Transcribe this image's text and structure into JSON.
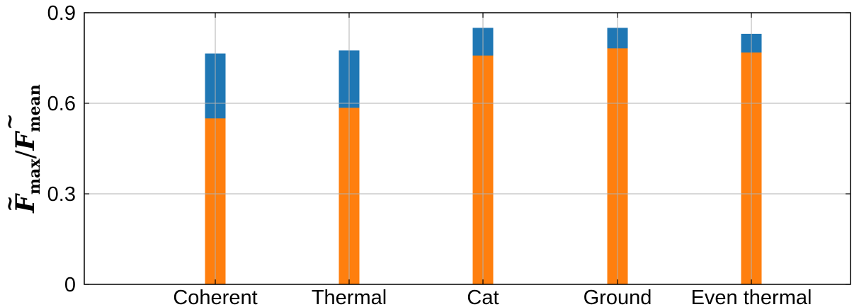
{
  "chart_data": {
    "type": "bar",
    "stacked_overlay": true,
    "categories": [
      "Coherent",
      "Thermal",
      "Cat",
      "Ground",
      "Even thermal"
    ],
    "series": [
      {
        "values": [
          0.765,
          0.775,
          0.85,
          0.85,
          0.83
        ],
        "color": "#1f77b4"
      },
      {
        "values": [
          0.55,
          0.585,
          0.758,
          0.782,
          0.768
        ],
        "color": "#ff7f0e"
      }
    ],
    "ylabel": {
      "F": "F",
      "tilde": "~",
      "max": "max",
      "mean": "mean",
      "slash": "/"
    },
    "xlabel": "",
    "title": "",
    "ylim": [
      0,
      0.9
    ],
    "yticks": [
      "0",
      "0.3",
      "0.6",
      "0.9"
    ],
    "ytick_values": [
      0,
      0.3,
      0.6,
      0.9
    ],
    "grid": true
  }
}
